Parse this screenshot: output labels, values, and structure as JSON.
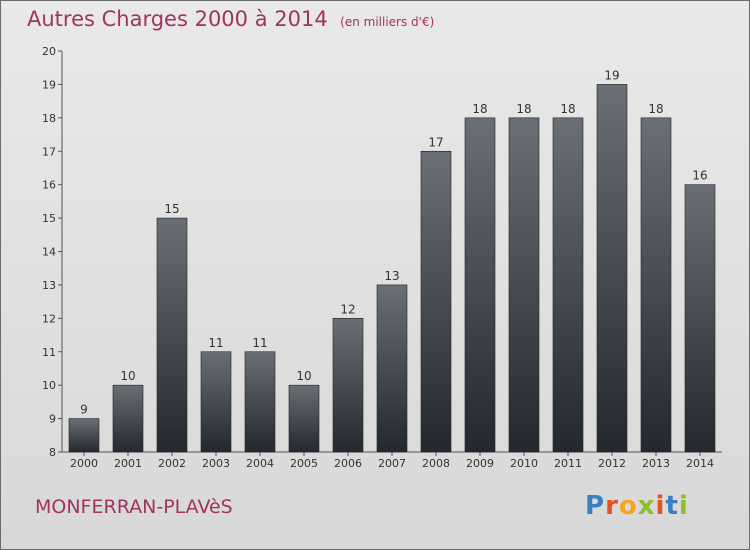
{
  "header": {
    "title": "Autres Charges 2000 à 2014",
    "unit": "(en milliers d'€)"
  },
  "footer": {
    "commune": "MONFERRAN-PLAVèS",
    "logo_text": "Proxiti"
  },
  "colors": {
    "title": "#a0335f",
    "bar_top": "#6a6f76",
    "bar_bottom": "#23282e"
  },
  "chart_data": {
    "type": "bar",
    "categories": [
      "2000",
      "2001",
      "2002",
      "2003",
      "2004",
      "2005",
      "2006",
      "2007",
      "2008",
      "2009",
      "2010",
      "2011",
      "2012",
      "2013",
      "2014"
    ],
    "values": [
      9,
      10,
      15,
      11,
      11,
      10,
      12,
      13,
      17,
      18,
      18,
      18,
      19,
      18,
      16
    ],
    "ylim": [
      8,
      20
    ],
    "yticks": [
      8,
      9,
      10,
      11,
      12,
      13,
      14,
      15,
      16,
      17,
      18,
      19,
      20
    ],
    "grid": false,
    "legend": "none"
  }
}
